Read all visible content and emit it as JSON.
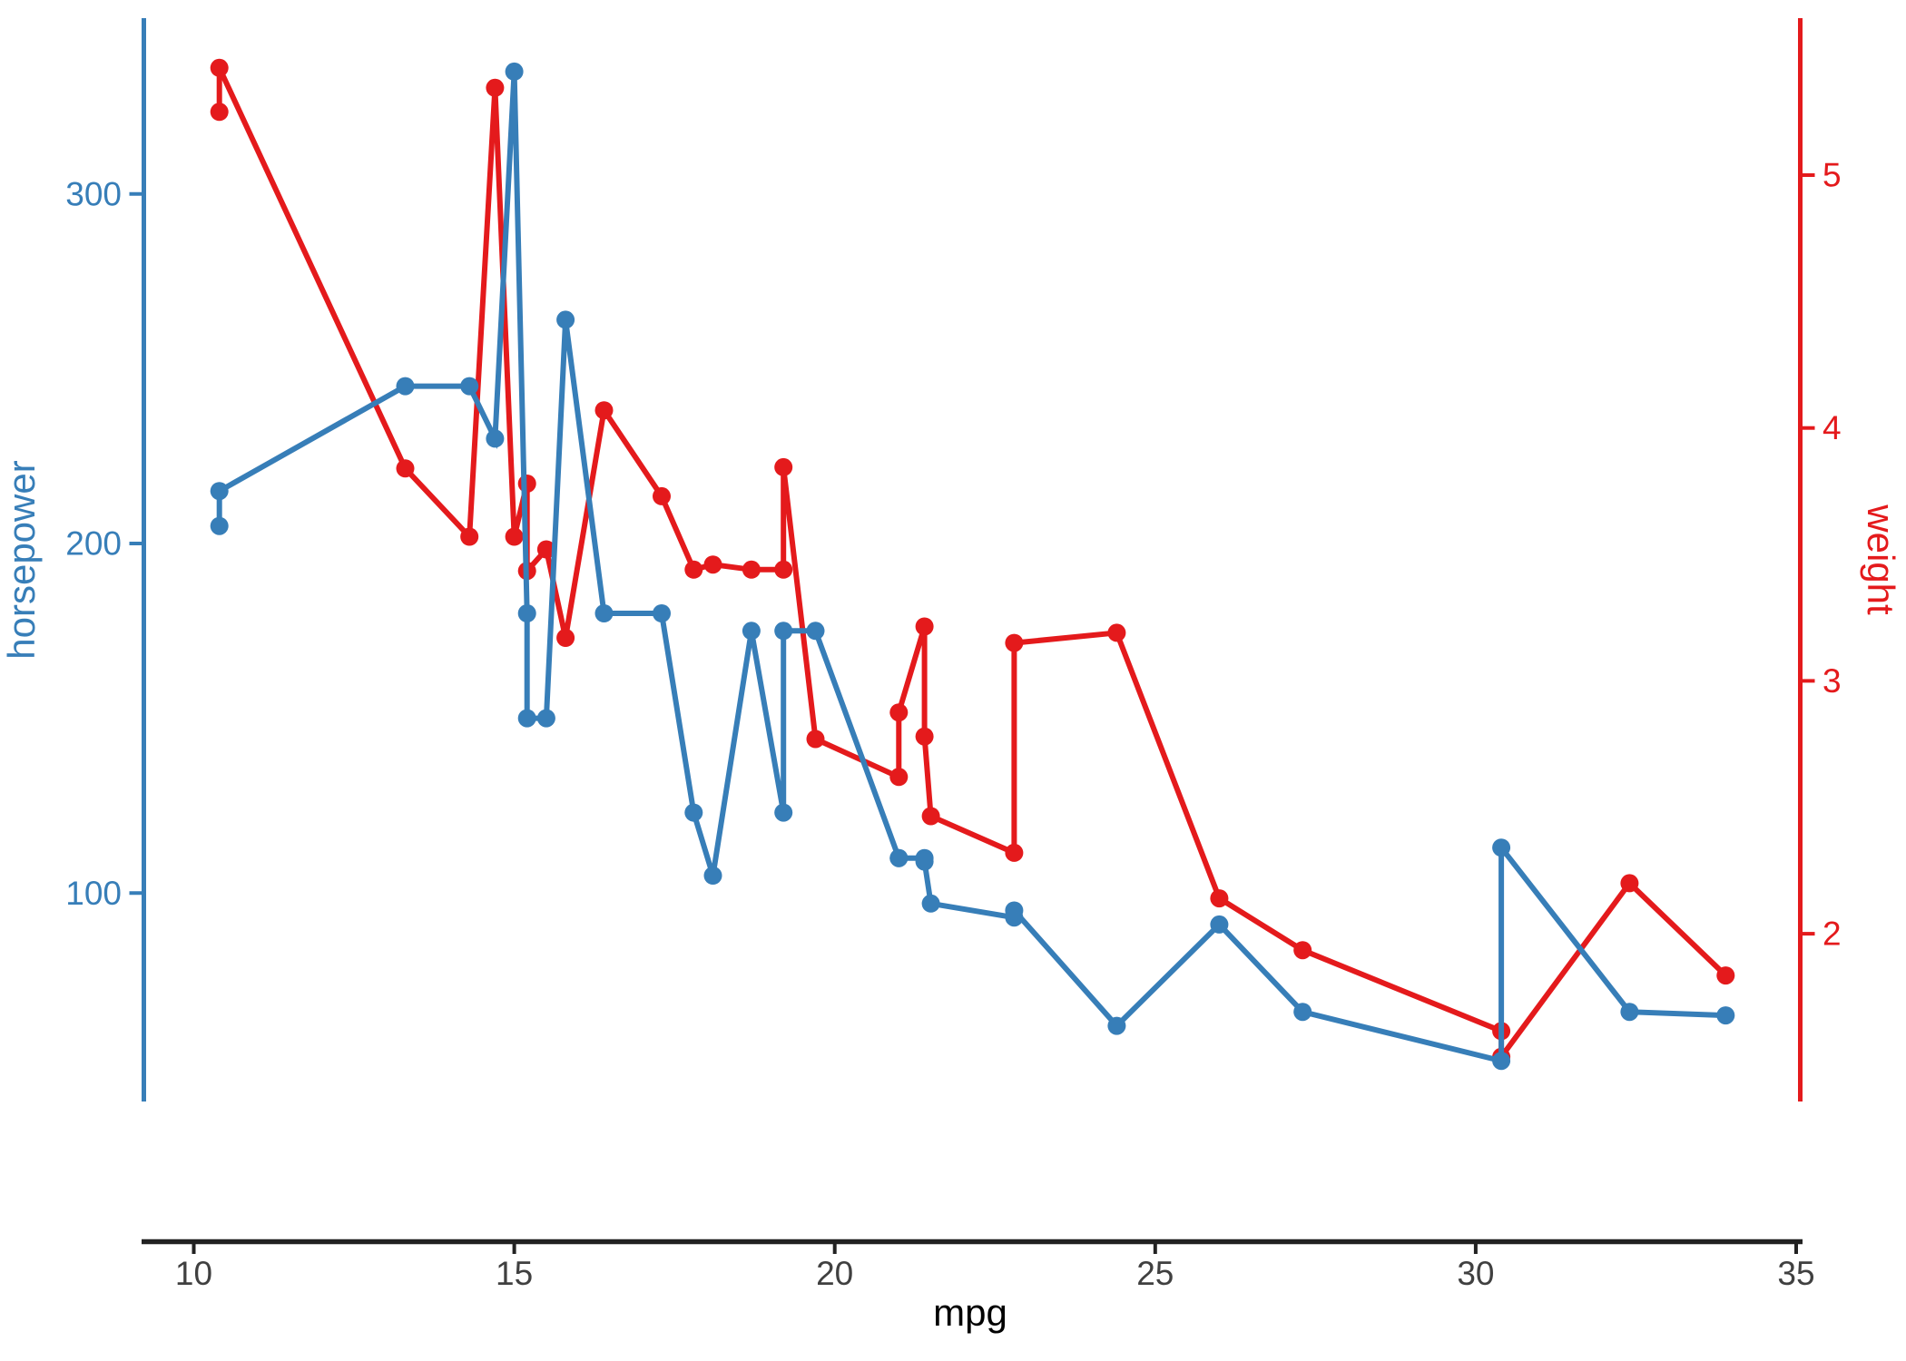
{
  "chart_data": {
    "type": "line",
    "description": "Dual-axis line chart of mtcars: horsepower (left, blue) and weight (right, red) versus mpg",
    "background": "#ffffff",
    "axes": {
      "bottom": {
        "label": "mpg",
        "ticks": [
          10,
          15,
          20,
          25,
          30,
          35
        ],
        "range": [
          9.2,
          35.1
        ],
        "line_color": "#222222",
        "tick_label_color": "#404040",
        "label_color": "#000000"
      },
      "left": {
        "label": "horsepower",
        "ticks": [
          100,
          200,
          300
        ],
        "color": "#377EB8"
      },
      "right": {
        "label": "weight",
        "ticks": [
          2,
          3,
          4,
          5
        ],
        "color": "#E41A1C"
      }
    },
    "grid": "off",
    "legend": "none",
    "series": [
      {
        "name": "weight",
        "axis": "right",
        "color": "#E41A1C",
        "marker": "circle",
        "points": [
          [
            10.4,
            5.25
          ],
          [
            10.4,
            5.424
          ],
          [
            13.3,
            3.84
          ],
          [
            14.3,
            3.57
          ],
          [
            14.7,
            5.345
          ],
          [
            15.0,
            3.57
          ],
          [
            15.2,
            3.78
          ],
          [
            15.2,
            3.435
          ],
          [
            15.5,
            3.52
          ],
          [
            15.8,
            3.17
          ],
          [
            16.4,
            4.07
          ],
          [
            17.3,
            3.73
          ],
          [
            17.8,
            3.44
          ],
          [
            18.1,
            3.46
          ],
          [
            18.7,
            3.44
          ],
          [
            19.2,
            3.44
          ],
          [
            19.2,
            3.845
          ],
          [
            19.7,
            2.77
          ],
          [
            21.0,
            2.62
          ],
          [
            21.0,
            2.875
          ],
          [
            21.4,
            3.215
          ],
          [
            21.4,
            2.78
          ],
          [
            21.5,
            2.465
          ],
          [
            22.8,
            2.32
          ],
          [
            22.8,
            3.15
          ],
          [
            24.4,
            3.19
          ],
          [
            26.0,
            2.14
          ],
          [
            27.3,
            1.935
          ],
          [
            30.4,
            1.615
          ],
          [
            30.4,
            1.513
          ],
          [
            32.4,
            2.2
          ],
          [
            33.9,
            1.835
          ]
        ]
      },
      {
        "name": "horsepower",
        "axis": "left",
        "color": "#377EB8",
        "marker": "circle",
        "points": [
          [
            10.4,
            205
          ],
          [
            10.4,
            215
          ],
          [
            13.3,
            245
          ],
          [
            14.3,
            245
          ],
          [
            14.7,
            230
          ],
          [
            15.0,
            335
          ],
          [
            15.2,
            180
          ],
          [
            15.2,
            150
          ],
          [
            15.5,
            150
          ],
          [
            15.8,
            264
          ],
          [
            16.4,
            180
          ],
          [
            17.3,
            180
          ],
          [
            17.8,
            123
          ],
          [
            18.1,
            105
          ],
          [
            18.7,
            175
          ],
          [
            19.2,
            123
          ],
          [
            19.2,
            175
          ],
          [
            19.7,
            175
          ],
          [
            21.0,
            110
          ],
          [
            21.0,
            110
          ],
          [
            21.4,
            110
          ],
          [
            21.4,
            109
          ],
          [
            21.5,
            97
          ],
          [
            22.8,
            93
          ],
          [
            22.8,
            95
          ],
          [
            24.4,
            62
          ],
          [
            26.0,
            91
          ],
          [
            27.3,
            66
          ],
          [
            30.4,
            52
          ],
          [
            30.4,
            113
          ],
          [
            32.4,
            66
          ],
          [
            33.9,
            65
          ]
        ]
      }
    ]
  }
}
